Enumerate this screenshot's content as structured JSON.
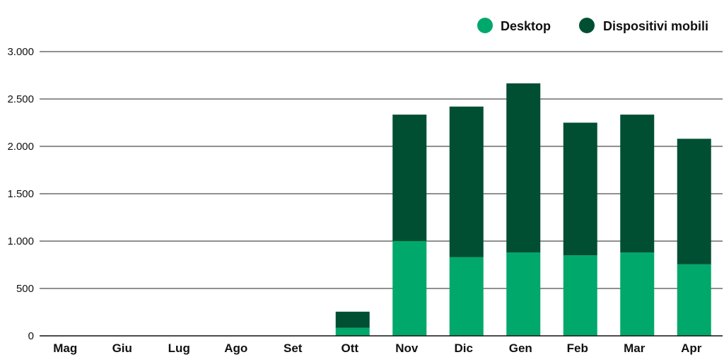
{
  "chart_data": {
    "type": "bar",
    "stacked": true,
    "categories": [
      "Mag",
      "Giu",
      "Lug",
      "Ago",
      "Set",
      "Ott",
      "Nov",
      "Dic",
      "Gen",
      "Feb",
      "Mar",
      "Apr"
    ],
    "series": [
      {
        "name": "Desktop",
        "color": "#00A86B",
        "values": [
          0,
          0,
          0,
          0,
          0,
          85,
          1000,
          830,
          880,
          850,
          880,
          755
        ]
      },
      {
        "name": "Dispositivi mobili",
        "color": "#004F33",
        "values": [
          0,
          0,
          0,
          0,
          0,
          170,
          1335,
          1590,
          1785,
          1400,
          1455,
          1325
        ]
      }
    ],
    "ylim": [
      0,
      3000
    ],
    "yticks": [
      0,
      500,
      1000,
      1500,
      2000,
      2500,
      3000
    ],
    "ytick_labels": [
      "0",
      "500",
      "1.000",
      "1.500",
      "2.000",
      "2.500",
      "3.000"
    ],
    "grid": true,
    "legend_position": "top-right"
  }
}
